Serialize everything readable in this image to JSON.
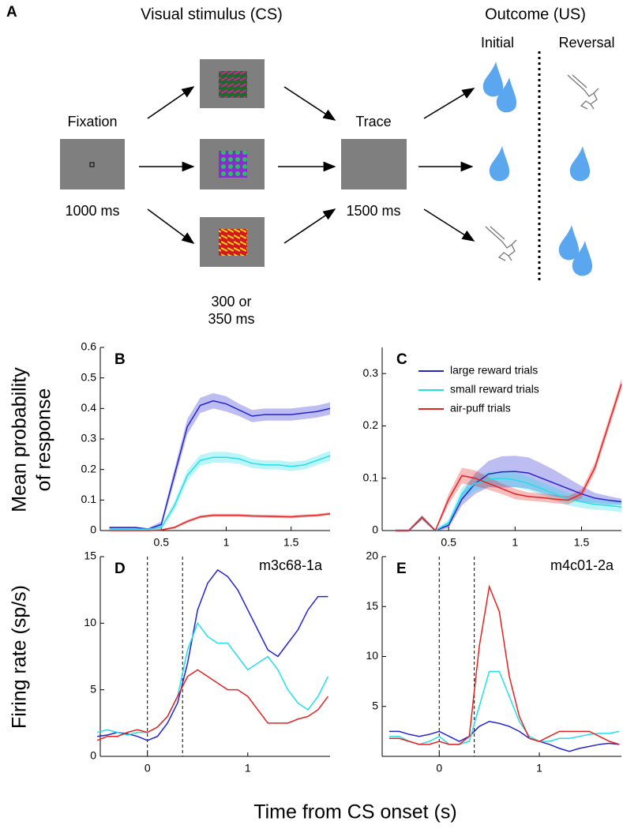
{
  "panel_a": {
    "label": "A",
    "title_cs": "Visual stimulus (CS)",
    "title_us": "Outcome (US)",
    "col_initial": "Initial",
    "col_reversal": "Reversal",
    "fixation": "Fixation",
    "fixation_time": "1000 ms",
    "cs_time": [
      "300 or",
      "350 ms"
    ],
    "trace": "Trace",
    "trace_time": "1500 ms"
  },
  "shared": {
    "ylabel_top": [
      "Mean probability",
      "of response"
    ],
    "ylabel_bottom": "Firing rate (sp/s)",
    "xlabel": "Time from CS onset (s)"
  },
  "chart_data": [
    {
      "type": "line",
      "panel_label": "B",
      "xlim": [
        0.03,
        1.8
      ],
      "ylim": [
        0,
        0.6
      ],
      "xticks": [
        0.5,
        1,
        1.5
      ],
      "yticks": [
        0,
        0.1,
        0.2,
        0.3,
        0.4,
        0.5,
        0.6
      ],
      "x": [
        0.1,
        0.2,
        0.3,
        0.4,
        0.5,
        0.6,
        0.7,
        0.8,
        0.9,
        1.0,
        1.1,
        1.2,
        1.3,
        1.4,
        1.5,
        1.6,
        1.7,
        1.8
      ],
      "series": [
        {
          "name": "large reward trials",
          "color": "#2424d0",
          "values": [
            0.01,
            0.01,
            0.01,
            0.005,
            0.02,
            0.18,
            0.34,
            0.41,
            0.425,
            0.415,
            0.395,
            0.375,
            0.38,
            0.38,
            0.38,
            0.385,
            0.39,
            0.4
          ],
          "errors": [
            0.003,
            0.003,
            0.003,
            0.003,
            0.01,
            0.02,
            0.025,
            0.025,
            0.025,
            0.025,
            0.02,
            0.02,
            0.02,
            0.02,
            0.02,
            0.02,
            0.02,
            0.02
          ]
        },
        {
          "name": "small reward trials",
          "color": "#22dfe8",
          "values": [
            0.005,
            0.005,
            0.005,
            0.005,
            0.01,
            0.08,
            0.18,
            0.23,
            0.24,
            0.24,
            0.235,
            0.22,
            0.215,
            0.215,
            0.21,
            0.215,
            0.23,
            0.245
          ],
          "errors": [
            0.003,
            0.003,
            0.003,
            0.003,
            0.008,
            0.015,
            0.018,
            0.018,
            0.018,
            0.018,
            0.016,
            0.015,
            0.015,
            0.015,
            0.015,
            0.015,
            0.015,
            0.016
          ]
        },
        {
          "name": "air-puff trials",
          "color": "#e52222",
          "values": [
            0,
            0,
            0,
            0,
            0.002,
            0.01,
            0.03,
            0.045,
            0.05,
            0.05,
            0.05,
            0.048,
            0.047,
            0.046,
            0.045,
            0.048,
            0.05,
            0.055
          ],
          "errors": [
            0.002,
            0.002,
            0.002,
            0.002,
            0.003,
            0.004,
            0.005,
            0.005,
            0.005,
            0.005,
            0.005,
            0.005,
            0.005,
            0.005,
            0.005,
            0.005,
            0.005,
            0.005
          ]
        }
      ]
    },
    {
      "type": "line",
      "panel_label": "C",
      "xlim": [
        0,
        1.8
      ],
      "ylim": [
        0,
        0.35
      ],
      "xticks": [
        0.5,
        1,
        1.5
      ],
      "yticks": [
        0,
        0.1,
        0.2,
        0.3
      ],
      "legend": "upper right",
      "x": [
        0.1,
        0.2,
        0.3,
        0.4,
        0.5,
        0.6,
        0.7,
        0.8,
        0.9,
        1.0,
        1.1,
        1.2,
        1.3,
        1.4,
        1.5,
        1.6,
        1.7,
        1.8
      ],
      "series": [
        {
          "name": "large reward trials",
          "color": "#2424d0",
          "values": [
            0,
            0,
            0.025,
            0,
            0.01,
            0.06,
            0.09,
            0.108,
            0.112,
            0.113,
            0.11,
            0.1,
            0.09,
            0.08,
            0.07,
            0.062,
            0.058,
            0.055
          ],
          "errors": [
            0.002,
            0.002,
            0.004,
            0.002,
            0.005,
            0.012,
            0.02,
            0.025,
            0.03,
            0.03,
            0.03,
            0.028,
            0.025,
            0.02,
            0.015,
            0.01,
            0.008,
            0.006
          ]
        },
        {
          "name": "small reward trials",
          "color": "#22dfe8",
          "values": [
            0,
            0,
            0.025,
            0,
            0.015,
            0.07,
            0.09,
            0.098,
            0.1,
            0.097,
            0.09,
            0.08,
            0.07,
            0.06,
            0.055,
            0.05,
            0.048,
            0.045
          ],
          "errors": [
            0.002,
            0.002,
            0.004,
            0.002,
            0.006,
            0.012,
            0.014,
            0.014,
            0.014,
            0.014,
            0.013,
            0.012,
            0.012,
            0.012,
            0.012,
            0.01,
            0.01,
            0.01
          ]
        },
        {
          "name": "air-puff trials",
          "color": "#e52222",
          "values": [
            0,
            0,
            0.025,
            0,
            0.06,
            0.105,
            0.1,
            0.09,
            0.08,
            0.07,
            0.065,
            0.063,
            0.06,
            0.058,
            0.07,
            0.12,
            0.2,
            0.28
          ],
          "errors": [
            0.002,
            0.002,
            0.004,
            0.002,
            0.01,
            0.015,
            0.015,
            0.012,
            0.01,
            0.01,
            0.008,
            0.008,
            0.008,
            0.008,
            0.008,
            0.01,
            0.01,
            0.01
          ]
        }
      ]
    },
    {
      "type": "line",
      "panel_label": "D",
      "annotation": "m3c68-1a",
      "xlim": [
        -0.47,
        1.82
      ],
      "ylim": [
        0,
        15
      ],
      "xticks": [
        0,
        1
      ],
      "yticks": [
        0,
        5,
        10,
        15
      ],
      "vlines": [
        0,
        0.35
      ],
      "x": [
        -0.5,
        -0.4,
        -0.3,
        -0.2,
        -0.1,
        0,
        0.1,
        0.2,
        0.3,
        0.4,
        0.5,
        0.6,
        0.7,
        0.8,
        0.9,
        1.0,
        1.1,
        1.2,
        1.3,
        1.4,
        1.5,
        1.6,
        1.7,
        1.8
      ],
      "series": [
        {
          "name": "large reward trials",
          "color": "#2424d0",
          "values": [
            1.5,
            1.6,
            1.8,
            1.7,
            1.5,
            1.2,
            1.5,
            2.5,
            4,
            7,
            11,
            13,
            14,
            13.5,
            12.5,
            11,
            9.5,
            8,
            7.5,
            8.5,
            9.5,
            11,
            12,
            12
          ]
        },
        {
          "name": "small reward trials",
          "color": "#22dfe8",
          "values": [
            1.8,
            2,
            1.8,
            1.6,
            1.8,
            1.8,
            2.2,
            3,
            4.5,
            8,
            10,
            9,
            8.5,
            8.5,
            7.5,
            6.5,
            7,
            7.5,
            6.5,
            5,
            4,
            3.5,
            4.5,
            6
          ]
        },
        {
          "name": "air-puff trials",
          "color": "#e52222",
          "values": [
            1.2,
            1.5,
            1.5,
            1.8,
            2,
            1.8,
            2.2,
            3,
            4.5,
            6,
            6.5,
            6,
            5.5,
            5,
            5,
            4.5,
            3.5,
            2.5,
            2.5,
            2.5,
            2.8,
            3,
            3.5,
            4.5
          ]
        }
      ]
    },
    {
      "type": "line",
      "panel_label": "E",
      "annotation": "m4c01-2a",
      "xlim": [
        -0.57,
        1.82
      ],
      "ylim": [
        0,
        20
      ],
      "xticks": [
        0,
        1
      ],
      "yticks": [
        5,
        10,
        15,
        20
      ],
      "vlines": [
        0,
        0.35
      ],
      "x": [
        -0.5,
        -0.4,
        -0.3,
        -0.2,
        -0.1,
        0,
        0.1,
        0.2,
        0.3,
        0.4,
        0.5,
        0.6,
        0.7,
        0.8,
        0.9,
        1.0,
        1.1,
        1.2,
        1.3,
        1.4,
        1.5,
        1.6,
        1.7,
        1.8
      ],
      "series": [
        {
          "name": "large reward trials",
          "color": "#2424d0",
          "values": [
            2.5,
            2.5,
            2.2,
            2,
            2.2,
            2.5,
            2,
            1.5,
            2,
            3,
            3.5,
            3.3,
            3,
            2.5,
            1.8,
            1.5,
            1.2,
            0.8,
            0.5,
            0.8,
            1,
            1.2,
            1.3,
            1.2
          ]
        },
        {
          "name": "small reward trials",
          "color": "#22dfe8",
          "values": [
            2,
            2,
            1.5,
            1.2,
            1.5,
            2,
            1.2,
            1.2,
            1.5,
            5,
            8.5,
            8.5,
            6,
            3.5,
            2,
            1.5,
            1.5,
            1.8,
            1.8,
            2,
            2.2,
            2.3,
            2.3,
            2.5
          ]
        },
        {
          "name": "air-puff trials",
          "color": "#e52222",
          "values": [
            1.8,
            1.8,
            1.5,
            1.2,
            1.2,
            1.5,
            1.2,
            1.2,
            2,
            11,
            17,
            14.5,
            8,
            4,
            1.8,
            1.5,
            2,
            2.5,
            2.5,
            2.5,
            2.5,
            2,
            1.5,
            1.2
          ]
        }
      ]
    }
  ]
}
